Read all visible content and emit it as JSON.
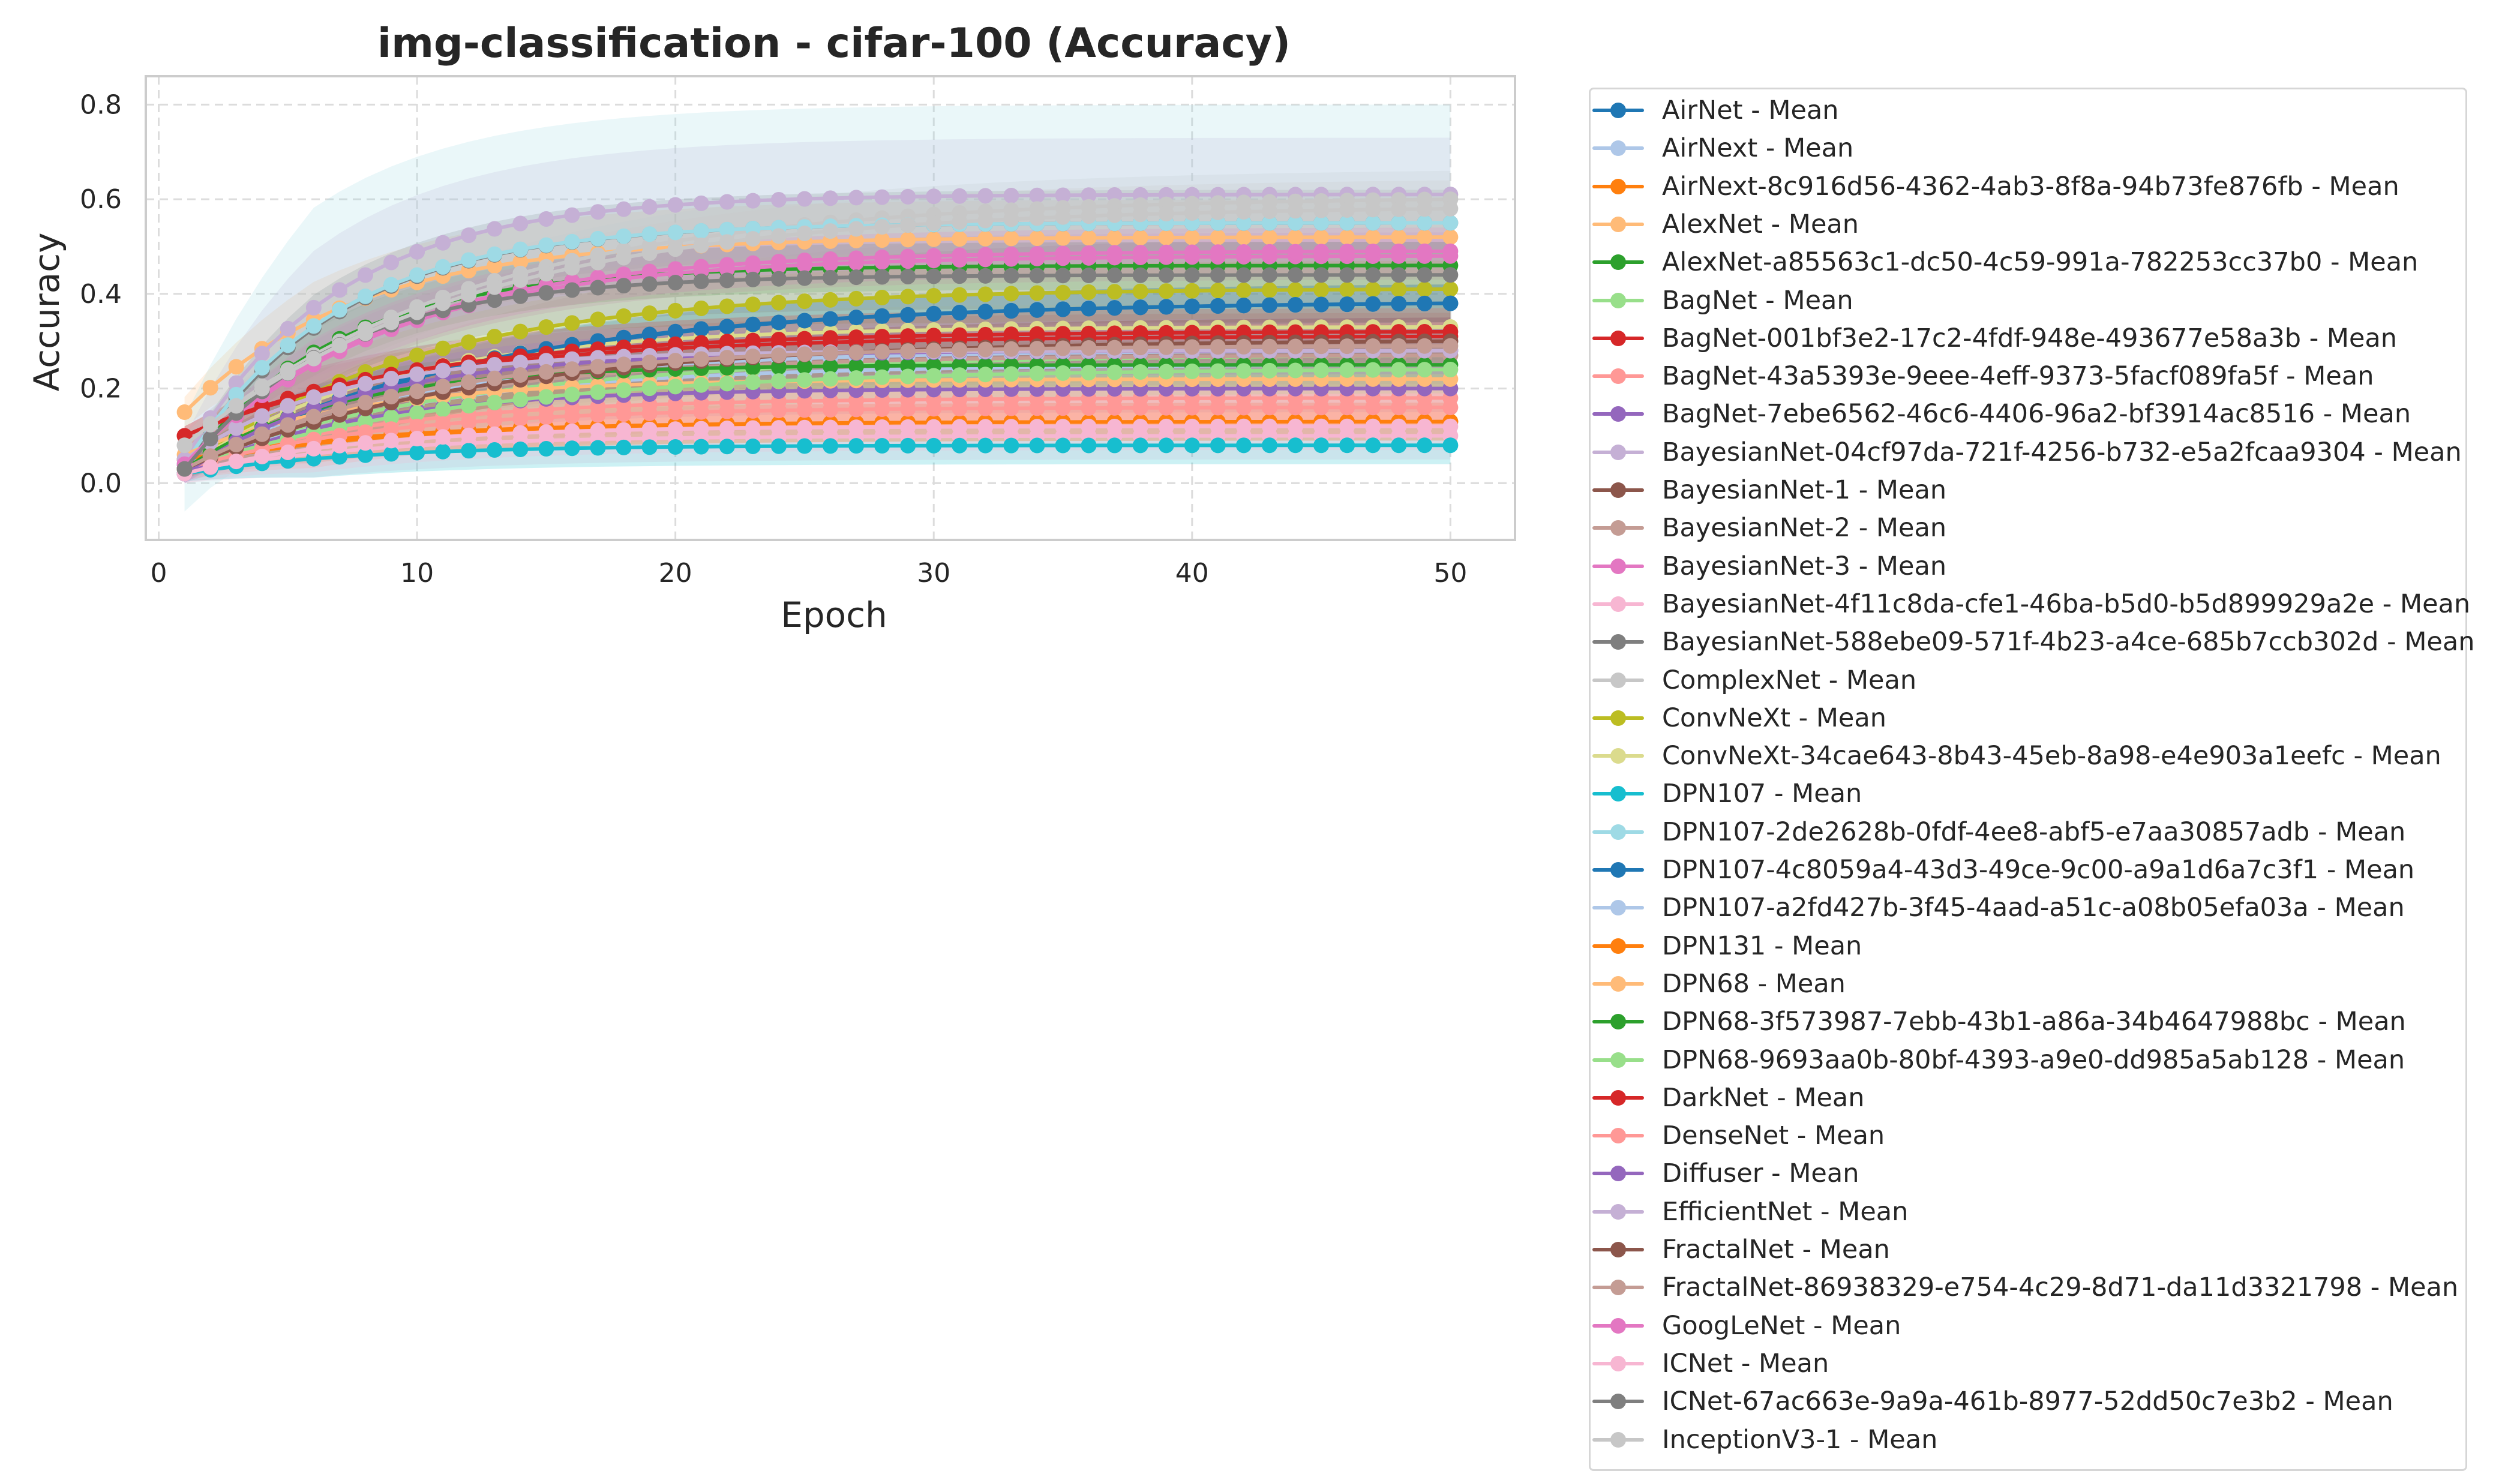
{
  "chart_data": {
    "type": "line",
    "title": "img-classification - cifar-100 (Accuracy)",
    "xlabel": "Epoch",
    "ylabel": "Accuracy",
    "xlim": [
      -0.5,
      52.5
    ],
    "ylim": [
      -0.12,
      0.86
    ],
    "x_ticks": [
      0,
      10,
      20,
      30,
      40,
      50
    ],
    "y_ticks": [
      0.0,
      0.2,
      0.4,
      0.6,
      0.8
    ],
    "x_tick_labels": [
      "0",
      "10",
      "20",
      "30",
      "40",
      "50"
    ],
    "y_tick_labels": [
      "0.0",
      "0.2",
      "0.4",
      "0.6",
      "0.8"
    ],
    "epochs": [
      1,
      50
    ],
    "grid": true,
    "legend_position": "outside right",
    "series": [
      {
        "name": "AirNet - Mean",
        "color": "#1f77b4",
        "start": 0.02,
        "end": 0.38,
        "band": 0.04
      },
      {
        "name": "AirNext - Mean",
        "color": "#aec7e8",
        "start": 0.03,
        "end": 0.25,
        "band": 0.04
      },
      {
        "name": "AirNext-8c916d56-4362-4ab3-8f8a-94b73fe876fb - Mean",
        "color": "#ff7f0e",
        "start": 0.04,
        "end": 0.13,
        "band": 0.04
      },
      {
        "name": "AlexNet - Mean",
        "color": "#ffbb78",
        "start": 0.15,
        "end": 0.52,
        "band": 0.08
      },
      {
        "name": "AlexNet-a85563c1-dc50-4c59-991a-782253cc37b0 - Mean",
        "color": "#2ca02c",
        "start": 0.03,
        "end": 0.46,
        "band": 0.05
      },
      {
        "name": "BagNet - Mean",
        "color": "#98df8a",
        "start": 0.04,
        "end": 0.27,
        "band": 0.05
      },
      {
        "name": "BagNet-001bf3e2-17c2-4fdf-948e-493677e58a3b - Mean",
        "color": "#d62728",
        "start": 0.1,
        "end": 0.31,
        "band": 0.05
      },
      {
        "name": "BagNet-43a5393e-9eee-4eff-9373-5facf089fa5f - Mean",
        "color": "#ff9896",
        "start": 0.03,
        "end": 0.18,
        "band": 0.06
      },
      {
        "name": "BagNet-7ebe6562-46c6-4406-96a2-bf3914ac8516 - Mean",
        "color": "#9467bd",
        "start": 0.02,
        "end": 0.2,
        "band": 0.05
      },
      {
        "name": "BayesianNet-04cf97da-721f-4256-b732-e5a2fcaa9304 - Mean",
        "color": "#c5b0d5",
        "start": 0.05,
        "end": 0.61,
        "band": 0.12
      },
      {
        "name": "BayesianNet-1 - Mean",
        "color": "#8c564b",
        "start": 0.03,
        "end": 0.3,
        "band": 0.05
      },
      {
        "name": "BayesianNet-2 - Mean",
        "color": "#c49c94",
        "start": 0.03,
        "end": 0.27,
        "band": 0.05
      },
      {
        "name": "BayesianNet-3 - Mean",
        "color": "#e377c2",
        "start": 0.04,
        "end": 0.48,
        "band": 0.05
      },
      {
        "name": "BayesianNet-4f11c8da-cfe1-46ba-b5d0-b5d899929a2e - Mean",
        "color": "#f7b6d2",
        "start": 0.02,
        "end": 0.1,
        "band": 0.05
      },
      {
        "name": "BayesianNet-588ebe09-571f-4b23-a4ce-685b7ccb302d - Mean",
        "color": "#7f7f7f",
        "start": 0.03,
        "end": 0.55,
        "band": 0.07
      },
      {
        "name": "ComplexNet - Mean",
        "color": "#c7c7c7",
        "start": 0.08,
        "end": 0.6,
        "band": 0.06
      },
      {
        "name": "ConvNeXt - Mean",
        "color": "#bcbd22",
        "start": 0.03,
        "end": 0.41,
        "band": 0.06
      },
      {
        "name": "ConvNeXt-34cae643-8b43-45eb-8a98-e4e903a1eefc - Mean",
        "color": "#dbdb8d",
        "start": 0.03,
        "end": 0.33,
        "band": 0.05
      },
      {
        "name": "DPN107 - Mean",
        "color": "#17becf",
        "start": 0.02,
        "end": 0.08,
        "band": 0.04
      },
      {
        "name": "DPN107-2de2628b-0fdf-4ee8-abf5-e7aa30857adb - Mean",
        "color": "#9edae5",
        "start": 0.04,
        "end": 0.55,
        "band": 0.25
      },
      {
        "name": "DPN107-4c8059a4-43d3-49ce-9c00-a9a1d6a7c3f1 - Mean",
        "color": "#1f77b4",
        "start": 0.03,
        "end": 0.38,
        "band": 0.04
      },
      {
        "name": "DPN107-a2fd427b-3f45-4aad-a51c-a08b05efa03a - Mean",
        "color": "#aec7e8",
        "start": 0.04,
        "end": 0.28,
        "band": 0.05
      },
      {
        "name": "DPN131 - Mean",
        "color": "#ff7f0e",
        "start": 0.05,
        "end": 0.13,
        "band": 0.04
      },
      {
        "name": "DPN68 - Mean",
        "color": "#ffbb78",
        "start": 0.06,
        "end": 0.22,
        "band": 0.05
      },
      {
        "name": "DPN68-3f573987-7ebb-43b1-a86a-34b4647988bc - Mean",
        "color": "#2ca02c",
        "start": 0.03,
        "end": 0.25,
        "band": 0.05
      },
      {
        "name": "DPN68-9693aa0b-80bf-4393-a9e0-dd985a5ab128 - Mean",
        "color": "#98df8a",
        "start": 0.03,
        "end": 0.24,
        "band": 0.05
      },
      {
        "name": "DarkNet - Mean",
        "color": "#d62728",
        "start": 0.1,
        "end": 0.32,
        "band": 0.05
      },
      {
        "name": "DenseNet - Mean",
        "color": "#ff9896",
        "start": 0.03,
        "end": 0.16,
        "band": 0.06
      },
      {
        "name": "Diffuser - Mean",
        "color": "#9467bd",
        "start": 0.02,
        "end": 0.28,
        "band": 0.05
      },
      {
        "name": "EfficientNet - Mean",
        "color": "#c5b0d5",
        "start": 0.05,
        "end": 0.28,
        "band": 0.06
      },
      {
        "name": "FractalNet - Mean",
        "color": "#8c564b",
        "start": 0.03,
        "end": 0.3,
        "band": 0.05
      },
      {
        "name": "FractalNet-86938329-e754-4c29-8d71-da11d3321798 - Mean",
        "color": "#c49c94",
        "start": 0.03,
        "end": 0.29,
        "band": 0.05
      },
      {
        "name": "GoogLeNet - Mean",
        "color": "#e377c2",
        "start": 0.04,
        "end": 0.49,
        "band": 0.05
      },
      {
        "name": "ICNet - Mean",
        "color": "#f7b6d2",
        "start": 0.02,
        "end": 0.12,
        "band": 0.05
      },
      {
        "name": "ICNet-67ac663e-9a9a-461b-8977-52dd50c7e3b2 - Mean",
        "color": "#7f7f7f",
        "start": 0.03,
        "end": 0.44,
        "band": 0.07
      },
      {
        "name": "InceptionV3-1 - Mean",
        "color": "#c7c7c7",
        "start": 0.08,
        "end": 0.58,
        "band": 0.06
      }
    ]
  }
}
